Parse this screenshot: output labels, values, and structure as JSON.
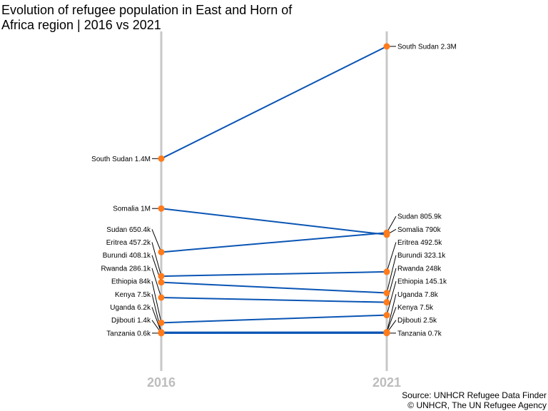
{
  "title": "Evolution of refugee population in East and Horn of Africa region | 2016 vs 2021",
  "source_line1": "Source: UNHCR Refugee Data Finder",
  "source_line2": "© UNHCR, The UN Refugee Agency",
  "colors": {
    "line": "#0a55b4",
    "point": "#ff7b1c",
    "axis": "#c8c8c8",
    "year_label": "#bdbdbd"
  },
  "chart_data": {
    "type": "slope",
    "categories": [
      "2016",
      "2021"
    ],
    "unit": "refugees",
    "series": [
      {
        "name": "South Sudan",
        "values": [
          1400000,
          2300000
        ],
        "labels": [
          "South Sudan 1.4M",
          "South Sudan 2.3M"
        ]
      },
      {
        "name": "Somalia",
        "values": [
          1000000,
          790000
        ],
        "labels": [
          "Somalia 1M",
          "Somalia 790k"
        ]
      },
      {
        "name": "Sudan",
        "values": [
          650400,
          805900
        ],
        "labels": [
          "Sudan 650.4k",
          "Sudan 805.9k"
        ]
      },
      {
        "name": "Eritrea",
        "values": [
          457200,
          492500
        ],
        "labels": [
          "Eritrea 457.2k",
          "Eritrea 492.5k"
        ]
      },
      {
        "name": "Burundi",
        "values": [
          408100,
          323100
        ],
        "labels": [
          "Burundi 408.1k",
          "Burundi 323.1k"
        ]
      },
      {
        "name": "Rwanda",
        "values": [
          286100,
          248000
        ],
        "labels": [
          "Rwanda 286.1k",
          "Rwanda 248k"
        ]
      },
      {
        "name": "Ethiopia",
        "values": [
          84000,
          145100
        ],
        "labels": [
          "Ethiopia 84k",
          "Ethiopia 145.1k"
        ]
      },
      {
        "name": "Kenya",
        "values": [
          7500,
          7500
        ],
        "labels": [
          "Kenya 7.5k",
          "Kenya 7.5k"
        ]
      },
      {
        "name": "Uganda",
        "values": [
          6200,
          7800
        ],
        "labels": [
          "Uganda 6.2k",
          "Uganda 7.8k"
        ]
      },
      {
        "name": "Djibouti",
        "values": [
          1400,
          2500
        ],
        "labels": [
          "Djibouti 1.4k",
          "Djibouti 2.5k"
        ]
      },
      {
        "name": "Tanzania",
        "values": [
          600,
          700
        ],
        "labels": [
          "Tanzania 0.6k",
          "Tanzania 0.7k"
        ]
      }
    ],
    "ylim": [
      0,
      2300000
    ],
    "grid": false,
    "legend": "none"
  }
}
